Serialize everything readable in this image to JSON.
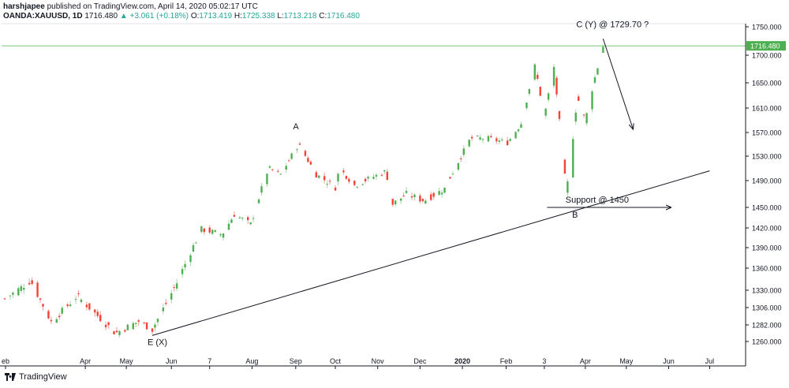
{
  "header": {
    "author": "harshjapee",
    "published": "published on TradingView.com, April 14, 2020 05:02:17 UTC",
    "symbol": "OANDA:XAUUSD, 1D",
    "last": "1716.480",
    "change": "▲ +3.061 (+0.18%)",
    "o_label": "O:",
    "o_value": "1713.419",
    "h_label": "H:",
    "h_value": "1725.338",
    "l_label": "L:",
    "l_value": "1713.218",
    "c_label": "C:",
    "c_value": "1716.480"
  },
  "footer": {
    "brand": "TradingView"
  },
  "chart_data": {
    "type": "candlestick",
    "instrument": "OANDA:XAUUSD",
    "timeframe": "1D",
    "ylim": [
      1240,
      1757
    ],
    "x_ticks": [
      "eb",
      "Apr",
      "May",
      "Jun",
      "7",
      "Aug",
      "Sep",
      "Oct",
      "Nov",
      "Dec",
      "2020",
      "Feb",
      "3",
      "Apr",
      "May",
      "Jun",
      "Jul"
    ],
    "y_ticks": [
      "1750.000",
      "1700.000",
      "1650.000",
      "1610.000",
      "1570.000",
      "1530.000",
      "1490.000",
      "1450.000",
      "1420.000",
      "1390.000",
      "1360.000",
      "1330.000",
      "1306.000",
      "1282.000",
      "1260.000"
    ],
    "y_tick_values": [
      1750,
      1700,
      1650,
      1610,
      1570,
      1530,
      1490,
      1450,
      1420,
      1390,
      1360,
      1330,
      1306,
      1282,
      1260
    ],
    "last_price": 1716.48,
    "last_price_label": "1716.480",
    "colors": {
      "up": "#26a69a",
      "down": "#ef5350",
      "bullish": "#4caf50",
      "bearish": "#f44336",
      "last_line": "#4caf50"
    },
    "annotations": [
      {
        "text": "A",
        "x": "Aug 31 2019",
        "y": 1557
      },
      {
        "text": "E (X)",
        "x": "May 20 2019",
        "y": 1268
      },
      {
        "text": "C (Y) @ 1729.70 ?",
        "x": "Apr 14 2020",
        "y": 1729.7
      },
      {
        "text": "B",
        "x": "Mar 20 2020",
        "y": 1451
      },
      {
        "text": "Support @ 1450",
        "x": "Apr 20 2020",
        "y": 1450
      }
    ],
    "trendline": {
      "from": {
        "x": "May 20 2019",
        "y": 1268
      },
      "to": {
        "x": "Jul 01 2020",
        "y": 1506
      }
    },
    "support_line": {
      "from": {
        "x": "Mar 04 2020",
        "y": 1450
      },
      "to": {
        "x": "Jun 03 2020",
        "y": 1450
      },
      "arrow": true
    },
    "projection_arrow": {
      "from": {
        "x": "Apr 14 2020",
        "y": 1729
      },
      "to": {
        "x": "May 06 2020",
        "y": 1575
      }
    },
    "anchor_closes": [
      {
        "date": "Feb 01 2019",
        "close": 1318
      },
      {
        "date": "Feb 20 2019",
        "close": 1343
      },
      {
        "date": "Mar 07 2019",
        "close": 1286
      },
      {
        "date": "Mar 26 2019",
        "close": 1322
      },
      {
        "date": "Apr 23 2019",
        "close": 1271
      },
      {
        "date": "May 10 2019",
        "close": 1287
      },
      {
        "date": "May 20 2019",
        "close": 1276
      },
      {
        "date": "Jun 07 2019",
        "close": 1340
      },
      {
        "date": "Jun 25 2019",
        "close": 1418
      },
      {
        "date": "Jul 10 2019",
        "close": 1410
      },
      {
        "date": "Jul 19 2019",
        "close": 1440
      },
      {
        "date": "Jul 31 2019",
        "close": 1425
      },
      {
        "date": "Aug 13 2019",
        "close": 1510
      },
      {
        "date": "Aug 22 2019",
        "close": 1500
      },
      {
        "date": "Sep 04 2019",
        "close": 1550
      },
      {
        "date": "Sep 17 2019",
        "close": 1500
      },
      {
        "date": "Oct 01 2019",
        "close": 1480
      },
      {
        "date": "Oct 04 2019",
        "close": 1510
      },
      {
        "date": "Oct 15 2019",
        "close": 1483
      },
      {
        "date": "Nov 07 2019",
        "close": 1505
      },
      {
        "date": "Nov 12 2019",
        "close": 1455
      },
      {
        "date": "Nov 22 2019",
        "close": 1470
      },
      {
        "date": "Dec 05 2019",
        "close": 1460
      },
      {
        "date": "Dec 20 2019",
        "close": 1478
      },
      {
        "date": "Jan 08 2020",
        "close": 1560
      },
      {
        "date": "Jan 20 2020",
        "close": 1560
      },
      {
        "date": "Feb 04 2020",
        "close": 1553
      },
      {
        "date": "Feb 14 2020",
        "close": 1585
      },
      {
        "date": "Feb 24 2020",
        "close": 1680
      },
      {
        "date": "Mar 02 2020",
        "close": 1596
      },
      {
        "date": "Mar 09 2020",
        "close": 1678
      },
      {
        "date": "Mar 18 2020",
        "close": 1474
      },
      {
        "date": "Mar 20 2020",
        "close": 1498
      },
      {
        "date": "Mar 26 2020",
        "close": 1628
      },
      {
        "date": "Apr 01 2020",
        "close": 1590
      },
      {
        "date": "Apr 07 2020",
        "close": 1650
      },
      {
        "date": "Apr 14 2020",
        "close": 1716
      }
    ]
  }
}
